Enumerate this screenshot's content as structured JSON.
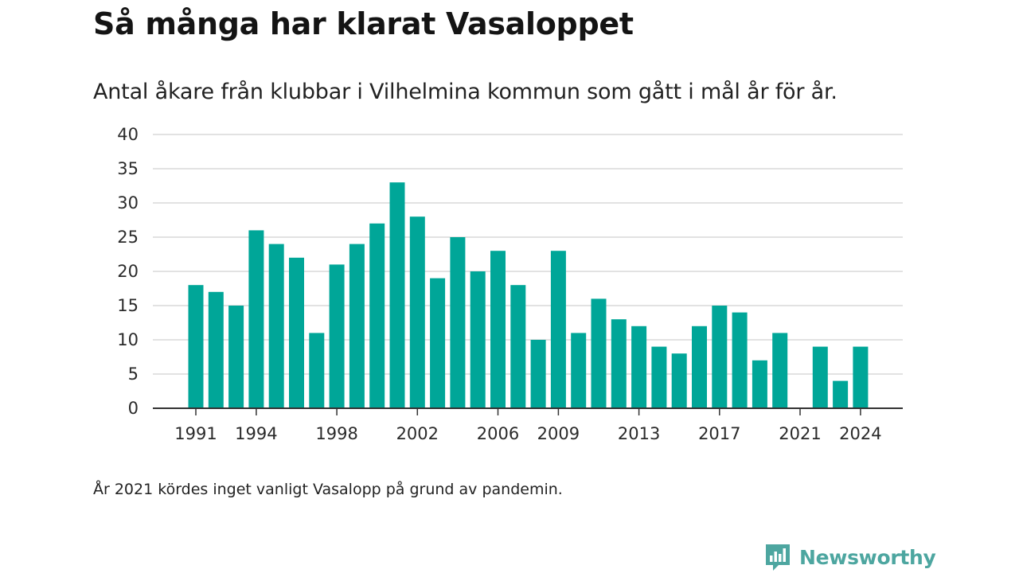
{
  "title": "Så många har klarat Vasaloppet",
  "subtitle": "Antal åkare från klubbar i Vilhelmina kommun som gått i mål år för år.",
  "footnote": "År 2021 kördes inget vanligt Vasalopp på grund av pandemin.",
  "brand": {
    "name": "Newsworthy",
    "icon": "newsworthy-logo-icon",
    "color": "#4da6a0"
  },
  "chart_data": {
    "type": "bar",
    "x": [
      1991,
      1992,
      1993,
      1994,
      1995,
      1996,
      1997,
      1998,
      1999,
      2000,
      2001,
      2002,
      2003,
      2004,
      2005,
      2006,
      2007,
      2008,
      2009,
      2010,
      2011,
      2012,
      2013,
      2014,
      2015,
      2016,
      2017,
      2018,
      2019,
      2020,
      2021,
      2022,
      2023,
      2024
    ],
    "values": [
      18,
      17,
      15,
      26,
      24,
      22,
      11,
      21,
      24,
      27,
      33,
      28,
      19,
      25,
      20,
      23,
      18,
      10,
      23,
      11,
      16,
      13,
      12,
      9,
      8,
      12,
      15,
      14,
      7,
      11,
      0,
      9,
      4,
      9
    ],
    "x_tick_labels": [
      "1991",
      "1994",
      "1998",
      "2002",
      "2006",
      "2009",
      "2013",
      "2017",
      "2021",
      "2024"
    ],
    "y_ticks": [
      0,
      5,
      10,
      15,
      20,
      25,
      30,
      35,
      40
    ],
    "ylim": [
      0,
      40
    ],
    "grid": true,
    "bar_color": "#00a698",
    "xlabel": "",
    "ylabel": ""
  }
}
